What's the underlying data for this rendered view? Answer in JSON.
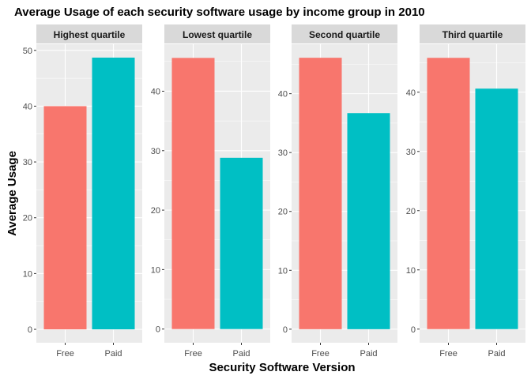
{
  "chart_data": {
    "type": "bar",
    "title": "Average Usage of each security software usage by income group in 2010",
    "xlabel": "Security Software Version",
    "ylabel": "Average Usage",
    "grid": true,
    "legend": "none",
    "colors": {
      "Free": "#F8766D",
      "Paid": "#00BFC4",
      "panel_bg": "#EBEBEB",
      "strip_bg": "#D9D9D9",
      "grid": "#FFFFFF"
    },
    "facets": [
      {
        "label": "Highest quartile",
        "categories": [
          "Free",
          "Paid"
        ],
        "values": [
          40.0,
          48.7
        ],
        "ylim": [
          -2.4,
          51.1
        ],
        "yticks": [
          0,
          10,
          20,
          30,
          40,
          50
        ]
      },
      {
        "label": "Lowest quartile",
        "categories": [
          "Free",
          "Paid"
        ],
        "values": [
          45.6,
          28.8
        ],
        "ylim": [
          -2.3,
          47.9
        ],
        "yticks": [
          0,
          10,
          20,
          30,
          40
        ]
      },
      {
        "label": "Second quartile",
        "categories": [
          "Free",
          "Paid"
        ],
        "values": [
          46.1,
          36.7
        ],
        "ylim": [
          -2.3,
          48.4
        ],
        "yticks": [
          0,
          10,
          20,
          30,
          40
        ]
      },
      {
        "label": "Third quartile",
        "categories": [
          "Free",
          "Paid"
        ],
        "values": [
          45.8,
          40.6
        ],
        "ylim": [
          -2.3,
          48.1
        ],
        "yticks": [
          0,
          10,
          20,
          30,
          40
        ]
      }
    ]
  }
}
